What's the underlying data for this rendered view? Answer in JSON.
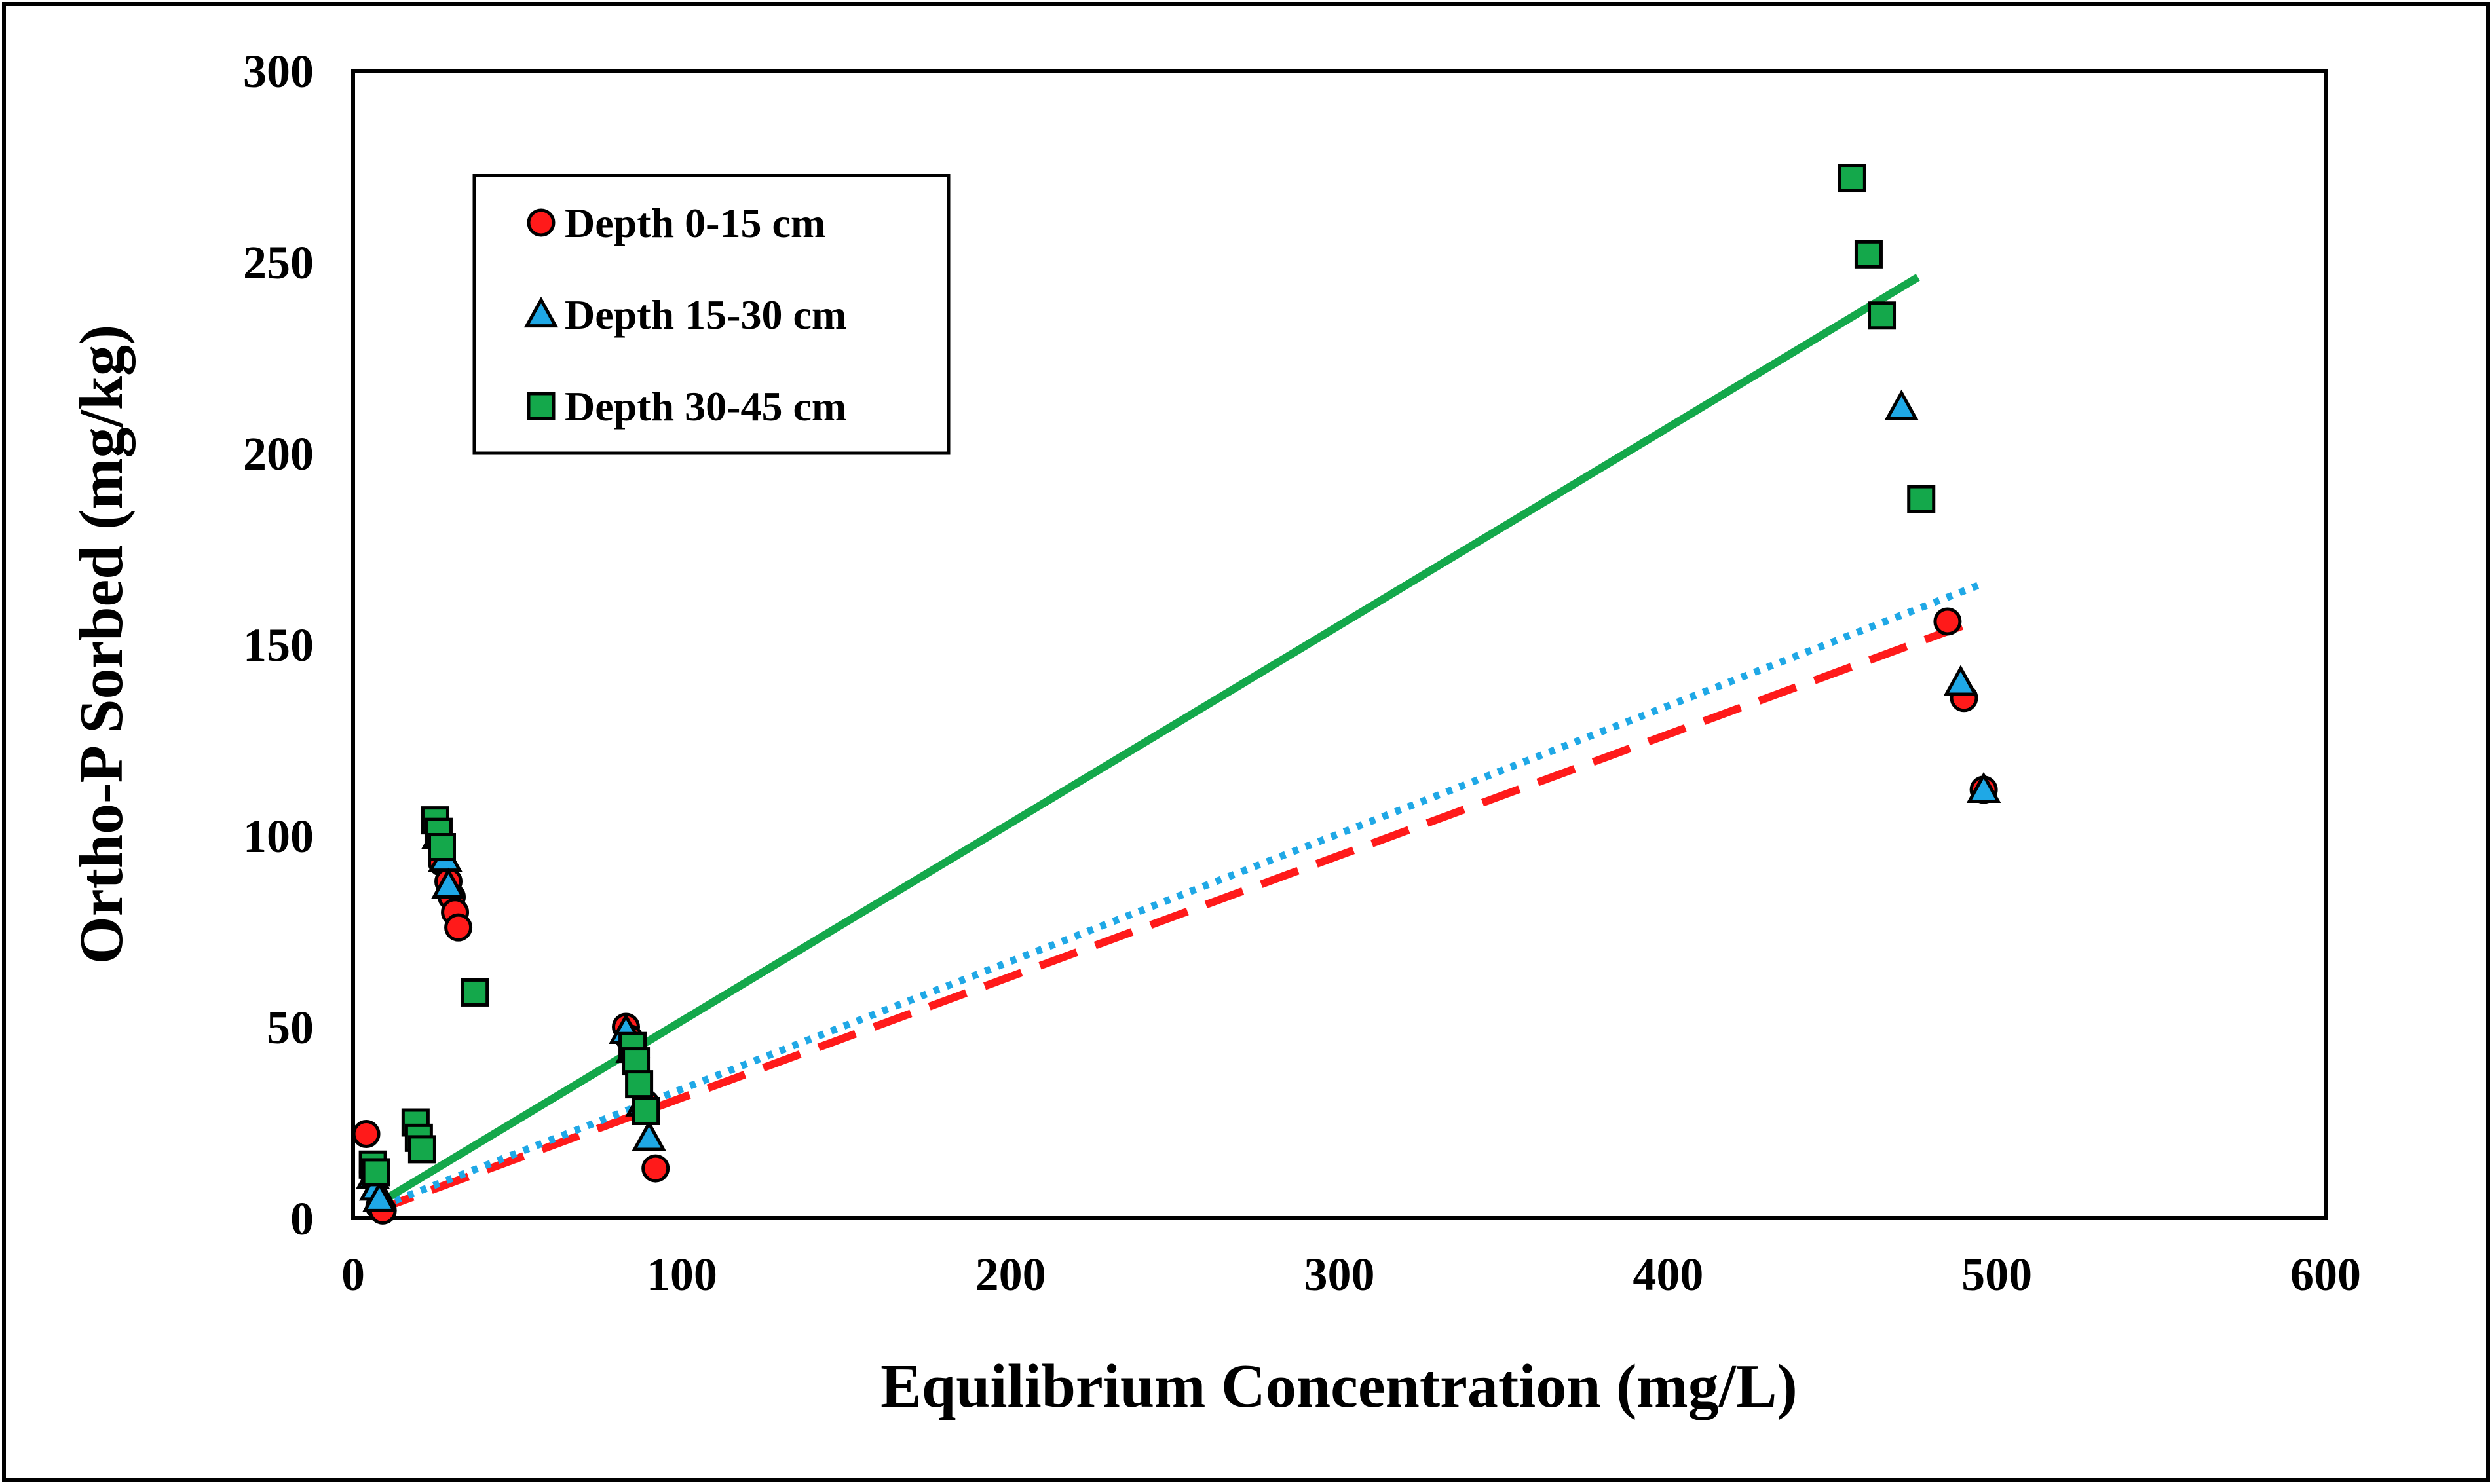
{
  "chart_data": {
    "type": "scatter",
    "title": "",
    "xlabel": "Equilibrium Concentration (mg/L)",
    "ylabel": "Ortho-P Sorbed (mg/kg)",
    "xlim": [
      0,
      600
    ],
    "ylim": [
      0,
      300
    ],
    "xticks": [
      "0",
      "100",
      "200",
      "300",
      "400",
      "500",
      "600"
    ],
    "yticks": [
      "0",
      "50",
      "100",
      "150",
      "200",
      "250",
      "300"
    ],
    "grid": false,
    "legend_position": "top-left",
    "series": [
      {
        "name": "Depth 0-15 cm",
        "marker": "circle",
        "color": "#ff1a1a",
        "points": [
          [
            4,
            22
          ],
          [
            6,
            12
          ],
          [
            7,
            10
          ],
          [
            8,
            3
          ],
          [
            9,
            2
          ],
          [
            27,
            93
          ],
          [
            29,
            88
          ],
          [
            30,
            84
          ],
          [
            31,
            80
          ],
          [
            32,
            76
          ],
          [
            83,
            50
          ],
          [
            84,
            47
          ],
          [
            86,
            42
          ],
          [
            89,
            30
          ],
          [
            92,
            13
          ],
          [
            485,
            156
          ],
          [
            490,
            136
          ],
          [
            496,
            112
          ]
        ]
      },
      {
        "name": "Depth 15-30 cm",
        "marker": "triangle",
        "color": "#1fa8e6",
        "points": [
          [
            6,
            11
          ],
          [
            7,
            8
          ],
          [
            8,
            5
          ],
          [
            26,
            100
          ],
          [
            28,
            94
          ],
          [
            29,
            87
          ],
          [
            83,
            49
          ],
          [
            85,
            44
          ],
          [
            88,
            30
          ],
          [
            90,
            21
          ],
          [
            471,
            212
          ],
          [
            489,
            140
          ],
          [
            496,
            112
          ]
        ]
      },
      {
        "name": "Depth 30-45 cm",
        "marker": "square",
        "color": "#14a84b",
        "points": [
          [
            6,
            14
          ],
          [
            7,
            12
          ],
          [
            19,
            25
          ],
          [
            20,
            21
          ],
          [
            21,
            18
          ],
          [
            25,
            104
          ],
          [
            26,
            101
          ],
          [
            27,
            97
          ],
          [
            37,
            59
          ],
          [
            85,
            45
          ],
          [
            86,
            41
          ],
          [
            87,
            35
          ],
          [
            89,
            28
          ],
          [
            456,
            272
          ],
          [
            461,
            252
          ],
          [
            465,
            236
          ],
          [
            477,
            188
          ]
        ]
      }
    ],
    "trendlines": [
      {
        "series": "Depth 0-15 cm",
        "style": "dashed",
        "color": "#ff1a1a",
        "x": [
          7,
          490
        ],
        "y": [
          2,
          155
        ]
      },
      {
        "series": "Depth 15-30 cm",
        "style": "dotted",
        "color": "#1fa8e6",
        "x": [
          5,
          496
        ],
        "y": [
          2,
          166
        ]
      },
      {
        "series": "Depth 30-45 cm",
        "style": "solid",
        "color": "#14a84b",
        "x": [
          8,
          476
        ],
        "y": [
          4,
          246
        ]
      }
    ]
  }
}
